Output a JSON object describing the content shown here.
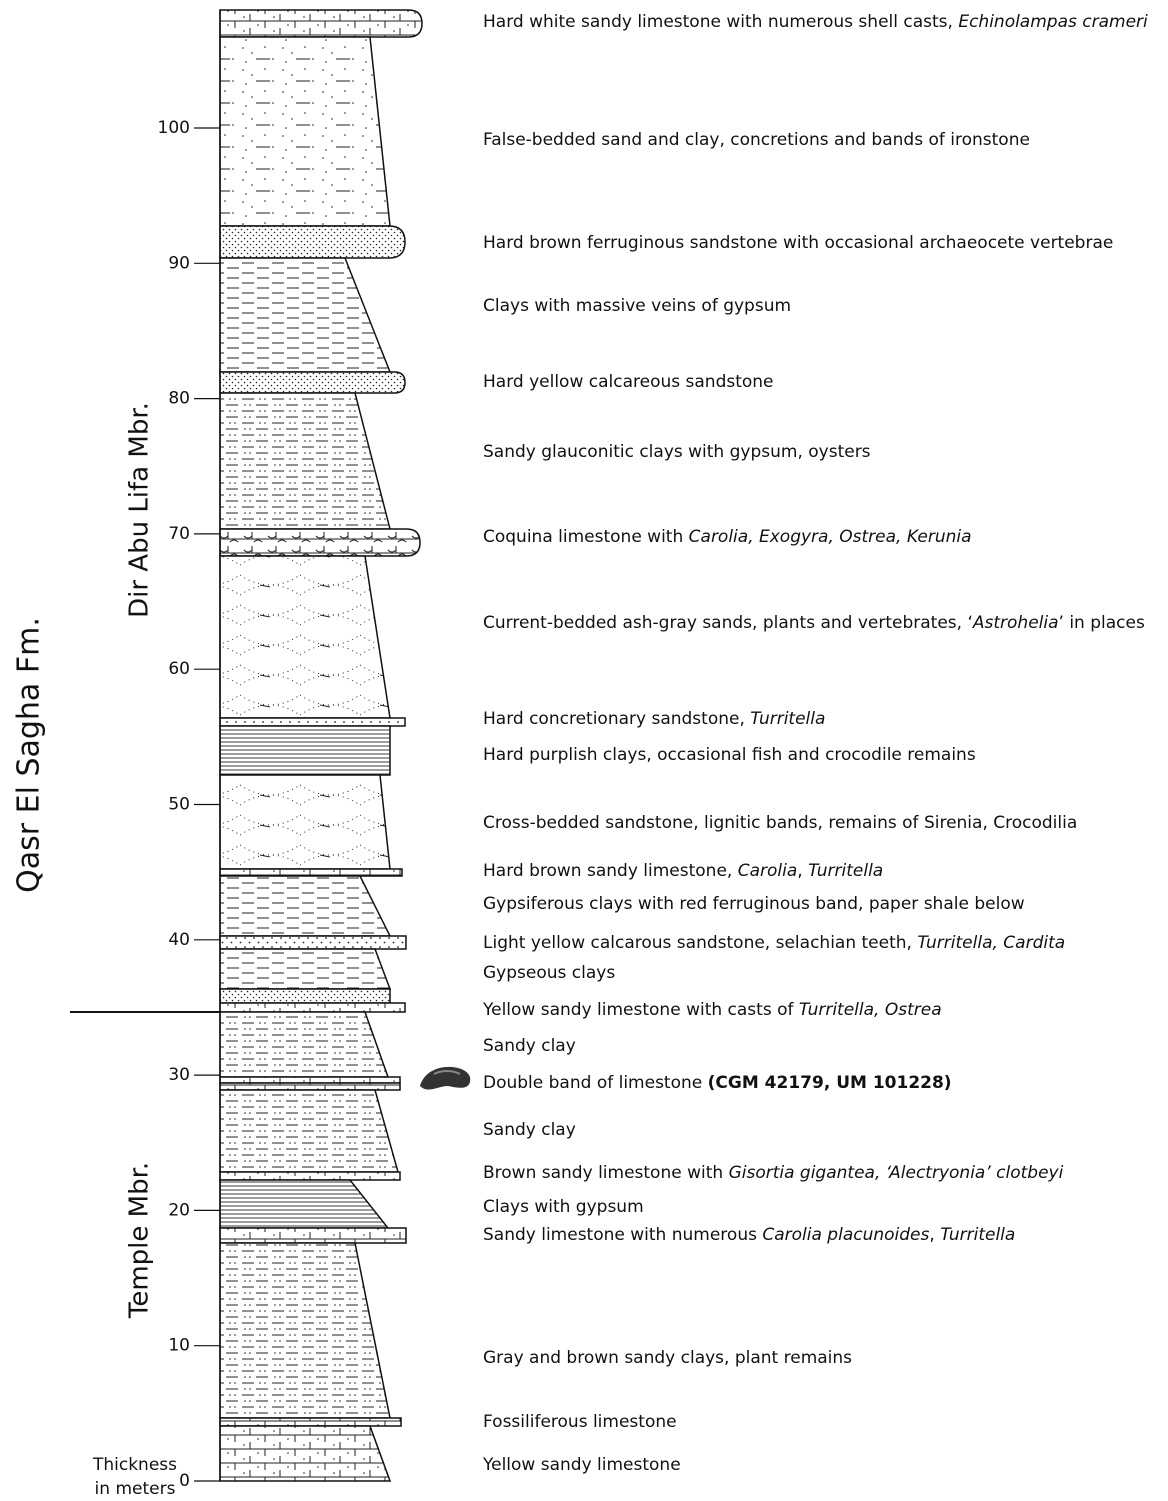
{
  "formation_label": "Qasr El Sagha Fm.",
  "members": [
    {
      "label": "Dir Abu Lifa Mbr."
    },
    {
      "label": "Temple Mbr."
    }
  ],
  "axis": {
    "label_lines": [
      "Thickness",
      "in meters"
    ],
    "ticks": [
      0,
      10,
      20,
      30,
      40,
      50,
      60,
      70,
      80,
      90,
      100
    ]
  },
  "descriptions": [
    [
      {
        "text": "Hard white sandy limestone with numerous shell casts, "
      },
      {
        "text": "Echinolampas crameri",
        "italic": true
      }
    ],
    [
      {
        "text": "False-bedded sand and clay, concretions and bands of ironstone"
      }
    ],
    [
      {
        "text": "Hard brown ferruginous sandstone with occasional archaeocete vertebrae"
      }
    ],
    [
      {
        "text": "Clays with massive veins of gypsum"
      }
    ],
    [
      {
        "text": "Hard yellow calcareous sandstone"
      }
    ],
    [
      {
        "text": "Sandy glauconitic clays with gypsum, oysters"
      }
    ],
    [
      {
        "text": "Coquina limestone with "
      },
      {
        "text": "Carolia, Exogyra, Ostrea, Kerunia",
        "italic": true
      }
    ],
    [
      {
        "text": "Current-bedded ash-gray sands, plants and vertebrates, ‘"
      },
      {
        "text": "Astrohelia",
        "italic": true
      },
      {
        "text": "’ in places"
      }
    ],
    [
      {
        "text": "Hard concretionary sandstone, "
      },
      {
        "text": "Turritella",
        "italic": true
      }
    ],
    [
      {
        "text": "Hard purplish clays, occasional fish and crocodile remains"
      }
    ],
    [
      {
        "text": "Cross-bedded sandstone, lignitic bands, remains of Sirenia, Crocodilia"
      }
    ],
    [
      {
        "text": "Hard brown sandy limestone, "
      },
      {
        "text": "Carolia",
        "italic": true
      },
      {
        "text": ", "
      },
      {
        "text": "Turritella",
        "italic": true
      }
    ],
    [
      {
        "text": "Gypsiferous clays with red ferruginous band, paper shale below"
      }
    ],
    [
      {
        "text": "Light yellow calcarous sandstone, selachian teeth, "
      },
      {
        "text": "Turritella, Cardita",
        "italic": true
      }
    ],
    [
      {
        "text": "Gypseous clays"
      }
    ],
    [
      {
        "text": "Yellow sandy limestone with casts of "
      },
      {
        "text": "Turritella, Ostrea",
        "italic": true
      }
    ],
    [
      {
        "text": "Sandy clay"
      }
    ],
    [
      {
        "text": "Double band of limestone "
      },
      {
        "text": "(CGM 42179, UM 101228)",
        "bold": true
      }
    ],
    [
      {
        "text": "Sandy clay"
      }
    ],
    [
      {
        "text": "Brown sandy limestone with "
      },
      {
        "text": "Gisortia gigantea, ‘Alectryonia’ clotbeyi",
        "italic": true
      }
    ],
    [
      {
        "text": "Clays with gypsum"
      }
    ],
    [
      {
        "text": "Sandy limestone with numerous "
      },
      {
        "text": "Carolia placunoides",
        "italic": true
      },
      {
        "text": ", "
      },
      {
        "text": "Turritella",
        "italic": true
      }
    ],
    [
      {
        "text": "Gray and brown sandy clays, plant remains"
      }
    ],
    [
      {
        "text": "Fossiliferous limestone"
      }
    ],
    [
      {
        "text": "Yellow sandy limestone"
      }
    ]
  ]
}
